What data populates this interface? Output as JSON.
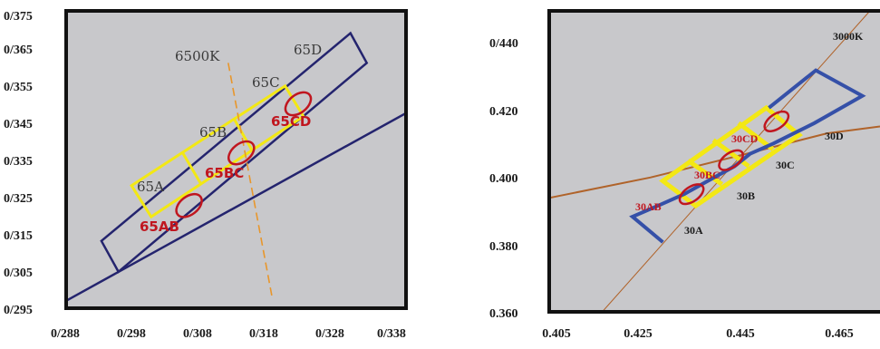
{
  "colors": {
    "plot_bg": "#c8c8cb",
    "frame": "#111111",
    "navy": "#24246e",
    "yellow": "#f3e814",
    "red": "#c0161f",
    "orange": "#e8962b",
    "blue": "#3550a8",
    "brown": "#b0632a"
  },
  "chart_data": [
    {
      "type": "scatter",
      "xlim": [
        288,
        340
      ],
      "ylim": [
        295,
        375
      ],
      "x_tick_labels": [
        "0/288",
        "0/298",
        "0/308",
        "0/318",
        "0/328",
        "0/338"
      ],
      "y_tick_labels": [
        "0/375",
        "0/365",
        "0/355",
        "0/345",
        "0/335",
        "0/325",
        "0/315",
        "0/305",
        "0/295"
      ],
      "isotherm_label": "6500K",
      "bin_labels": [
        "65A",
        "65B",
        "65C",
        "65D"
      ],
      "subbin_labels": [
        "65AB",
        "65BC",
        "65CD"
      ],
      "outer_quadrangle": [
        [
          293.4,
          313.1
        ],
        [
          296.0,
          304.8
        ],
        [
          334.0,
          361.0
        ],
        [
          331.5,
          369.0
        ]
      ],
      "yellow_region": [
        [
          298.0,
          328.0
        ],
        [
          321.5,
          354.8
        ],
        [
          324.3,
          346.6
        ],
        [
          301.0,
          319.6
        ]
      ],
      "yellow_dividers": [
        [
          [
            305.8,
            336.9
          ],
          [
            308.6,
            328.5
          ]
        ],
        [
          [
            313.7,
            345.9
          ],
          [
            316.4,
            337.6
          ]
        ]
      ],
      "ellipses": [
        [
          306.8,
          322.6
        ],
        [
          314.8,
          336.8
        ],
        [
          323.5,
          350.0
        ]
      ],
      "planck_line": [
        [
          288,
          297
        ],
        [
          340,
          347.5
        ]
      ],
      "isotherm_line": [
        [
          312.8,
          361.0
        ],
        [
          319.5,
          298.0
        ]
      ]
    },
    {
      "type": "scatter",
      "xlim": [
        0.405,
        0.4705
      ],
      "ylim": [
        0.36,
        0.4485
      ],
      "x_tick_labels": [
        "0.405",
        "0.425",
        "0.445",
        "0.465"
      ],
      "y_tick_labels": [
        "0/440",
        "0.420",
        "0.400",
        "0.380",
        "0.360"
      ],
      "isotherm_label": "3000K",
      "bin_labels": [
        "30A",
        "30B",
        "30C",
        "30D"
      ],
      "subbin_labels": [
        "30AB",
        "30BC",
        "30CD"
      ],
      "blue_outline": [
        [
          0.4275,
          0.3805
        ],
        [
          0.4215,
          0.388
        ],
        [
          0.427,
          0.3915
        ],
        [
          0.4317,
          0.3946
        ],
        [
          0.4364,
          0.3985
        ],
        [
          0.4417,
          0.4028
        ],
        [
          0.4448,
          0.4065
        ],
        [
          0.4494,
          0.4095
        ],
        [
          0.4529,
          0.4121
        ],
        [
          0.4575,
          0.4155
        ],
        [
          0.467,
          0.4235
        ],
        [
          0.4578,
          0.431
        ],
        [
          0.4485,
          0.42
        ]
      ],
      "yellow_region": [
        [
          0.4275,
          0.3985
        ],
        [
          0.448,
          0.42
        ],
        [
          0.4545,
          0.412
        ],
        [
          0.434,
          0.3912
        ]
      ],
      "yellow_dividers": [
        [
          [
            0.4325,
            0.4045
          ],
          [
            0.4392,
            0.3975
          ]
        ],
        [
          [
            0.4375,
            0.4105
          ],
          [
            0.4445,
            0.4028
          ]
        ],
        [
          [
            0.4425,
            0.4155
          ],
          [
            0.4493,
            0.4078
          ]
        ]
      ],
      "ellipses": [
        [
          0.4332,
          0.3946
        ],
        [
          0.441,
          0.4046
        ],
        [
          0.45,
          0.416
        ]
      ],
      "planck_curve": [
        [
          0.405,
          0.3935
        ],
        [
          0.425,
          0.3995
        ],
        [
          0.445,
          0.4068
        ],
        [
          0.46,
          0.4125
        ],
        [
          0.4705,
          0.4145
        ]
      ],
      "isotherm_line": [
        [
          0.4155,
          0.36
        ],
        [
          0.4685,
          0.4485
        ]
      ]
    }
  ]
}
